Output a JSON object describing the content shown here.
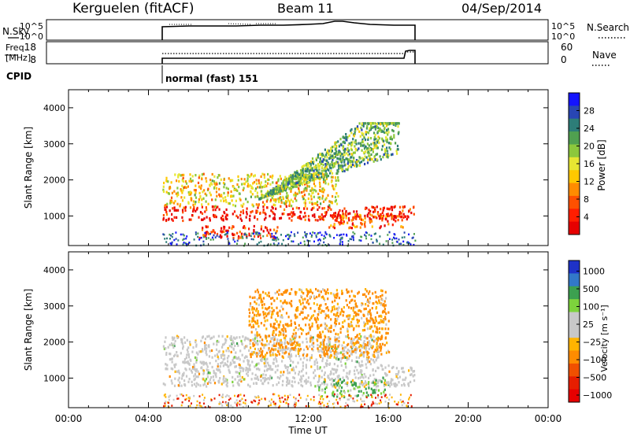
{
  "header": {
    "station": "Kerguelen (fitACF)",
    "beam": "Beam 11",
    "date": "04/Sep/2014"
  },
  "summary": {
    "nsky_label": "N.Sky",
    "nsky_ticks": [
      "10^5",
      "10^0"
    ],
    "nsearch_label": "N.Search",
    "freq_label_line1": "Freq.",
    "freq_label_line2": "[MHz]",
    "freq_ticks": [
      "18",
      "8"
    ],
    "nave_ticks": [
      "60",
      "0"
    ],
    "nave_label": "Nave",
    "cpid_label": "CPID",
    "cpid_text": "normal (fast) 151"
  },
  "chart_data": [
    {
      "type": "heatmap",
      "title": "",
      "xlabel": "Time UT",
      "ylabel": "Slant Range [km]",
      "x_ticks": [
        "00:00",
        "04:00",
        "08:00",
        "12:00",
        "16:00",
        "20:00",
        "00:00"
      ],
      "y_ticks": [
        "1000",
        "2000",
        "3000",
        "4000"
      ],
      "xlim": [
        0,
        24
      ],
      "ylim": [
        180,
        4500
      ],
      "data_window": [
        4.7,
        17.4
      ],
      "colorbar": {
        "label": "Power [dB]",
        "ticks": [
          "4",
          "8",
          "12",
          "16",
          "20",
          "24",
          "28"
        ],
        "colors": [
          "#1414ff",
          "#2846b4",
          "#2d7d78",
          "#50a050",
          "#8cc83c",
          "#e6e632",
          "#ffc800",
          "#ff8c00",
          "#ff5000",
          "#ff1e00",
          "#e60000"
        ]
      },
      "series": [
        {
          "name": "",
          "t": [
            4.7,
            17.3
          ],
          "range": [
            900,
            1300
          ],
          "level": 0.95
        },
        {
          "name": "",
          "t": [
            4.7,
            13.5
          ],
          "range": [
            1300,
            2200
          ],
          "level": 0.55
        },
        {
          "name": "",
          "t": [
            6.5,
            10.5
          ],
          "range": [
            400,
            750
          ],
          "level": 0.9
        },
        {
          "name": "",
          "t": [
            9.5,
            16.5
          ],
          "range": [
            1500,
            3600
          ],
          "level": 0.35
        },
        {
          "name": "",
          "t": [
            13.0,
            16.8
          ],
          "range": [
            700,
            1100
          ],
          "level": 0.8
        }
      ]
    },
    {
      "type": "heatmap",
      "title": "",
      "xlabel": "Time UT",
      "ylabel": "Slant Range [km]",
      "x_ticks": [
        "00:00",
        "04:00",
        "08:00",
        "12:00",
        "16:00",
        "20:00",
        "00:00"
      ],
      "y_ticks": [
        "1000",
        "2000",
        "3000",
        "4000"
      ],
      "xlim": [
        0,
        24
      ],
      "ylim": [
        180,
        4500
      ],
      "data_window": [
        4.7,
        17.4
      ],
      "colorbar": {
        "label": "Velocity [m s⁻¹]",
        "ticks": [
          "1000",
          "500",
          "100",
          "25",
          "−25",
          "−100",
          "−500",
          "−1000"
        ],
        "colors": [
          "#1e32c8",
          "#3278c8",
          "#3ca050",
          "#7dd23c",
          "#c8c8c8",
          "#c8c8c8",
          "#ffb400",
          "#ff8c00",
          "#f05000",
          "#e61e00",
          "#e60000"
        ]
      },
      "series": [
        {
          "name": "",
          "t": [
            4.7,
            17.3
          ],
          "range": [
            800,
            1400
          ],
          "value": 0
        },
        {
          "name": "",
          "t": [
            4.7,
            15.5
          ],
          "range": [
            1400,
            2200
          ],
          "value": 0
        },
        {
          "name": "",
          "t": [
            12.5,
            15.8
          ],
          "range": [
            500,
            1000
          ],
          "value": 90
        },
        {
          "name": "",
          "t": [
            9.0,
            16.0
          ],
          "range": [
            1600,
            3500
          ],
          "value": -150
        }
      ]
    }
  ]
}
